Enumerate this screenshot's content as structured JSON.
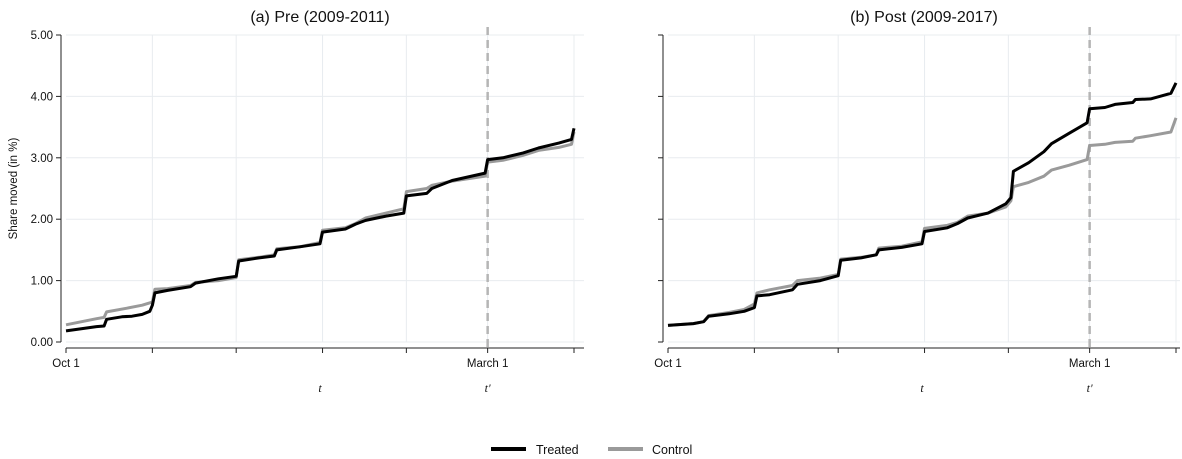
{
  "chart_data": [
    {
      "type": "line",
      "title": "(a) Pre (2009-2011)",
      "ylabel": "Share moved (in %)",
      "xlabel": "",
      "ylim": [
        0,
        5
      ],
      "yticks": [
        "0.00",
        "1.00",
        "2.00",
        "3.00",
        "4.00",
        "5.00"
      ],
      "x_tick_labels": [
        {
          "x": 0.0,
          "label": "Oct 1"
        },
        {
          "x": 0.83,
          "label": "March 1"
        }
      ],
      "x_italic_labels": [
        {
          "x": 0.5,
          "label": "t"
        },
        {
          "x": 0.83,
          "label": "t'"
        }
      ],
      "vline_x": 0.83,
      "grid": true,
      "series": [
        {
          "name": "Treated",
          "color": "#000000",
          "points": [
            [
              0.0,
              0.18
            ],
            [
              0.06,
              0.25
            ],
            [
              0.075,
              0.26
            ],
            [
              0.08,
              0.37
            ],
            [
              0.11,
              0.41
            ],
            [
              0.13,
              0.42
            ],
            [
              0.15,
              0.45
            ],
            [
              0.165,
              0.5
            ],
            [
              0.17,
              0.6
            ],
            [
              0.175,
              0.8
            ],
            [
              0.2,
              0.84
            ],
            [
              0.245,
              0.9
            ],
            [
              0.255,
              0.96
            ],
            [
              0.3,
              1.03
            ],
            [
              0.335,
              1.07
            ],
            [
              0.34,
              1.32
            ],
            [
              0.38,
              1.37
            ],
            [
              0.41,
              1.4
            ],
            [
              0.415,
              1.5
            ],
            [
              0.46,
              1.55
            ],
            [
              0.5,
              1.6
            ],
            [
              0.505,
              1.79
            ],
            [
              0.55,
              1.84
            ],
            [
              0.57,
              1.92
            ],
            [
              0.59,
              1.98
            ],
            [
              0.63,
              2.05
            ],
            [
              0.665,
              2.1
            ],
            [
              0.67,
              2.38
            ],
            [
              0.71,
              2.42
            ],
            [
              0.72,
              2.5
            ],
            [
              0.76,
              2.63
            ],
            [
              0.825,
              2.75
            ],
            [
              0.83,
              2.97
            ],
            [
              0.86,
              3.0
            ],
            [
              0.9,
              3.08
            ],
            [
              0.93,
              3.16
            ],
            [
              0.97,
              3.24
            ],
            [
              0.995,
              3.3
            ],
            [
              1.0,
              3.48
            ]
          ]
        },
        {
          "name": "Control",
          "color": "#9a9a9a",
          "points": [
            [
              0.0,
              0.28
            ],
            [
              0.06,
              0.38
            ],
            [
              0.075,
              0.4
            ],
            [
              0.08,
              0.49
            ],
            [
              0.12,
              0.55
            ],
            [
              0.15,
              0.6
            ],
            [
              0.17,
              0.65
            ],
            [
              0.175,
              0.86
            ],
            [
              0.2,
              0.87
            ],
            [
              0.245,
              0.92
            ],
            [
              0.255,
              0.97
            ],
            [
              0.3,
              1.0
            ],
            [
              0.335,
              1.05
            ],
            [
              0.34,
              1.34
            ],
            [
              0.38,
              1.38
            ],
            [
              0.41,
              1.42
            ],
            [
              0.415,
              1.52
            ],
            [
              0.46,
              1.55
            ],
            [
              0.5,
              1.62
            ],
            [
              0.505,
              1.82
            ],
            [
              0.55,
              1.86
            ],
            [
              0.57,
              1.93
            ],
            [
              0.59,
              2.02
            ],
            [
              0.63,
              2.1
            ],
            [
              0.665,
              2.17
            ],
            [
              0.67,
              2.45
            ],
            [
              0.71,
              2.5
            ],
            [
              0.72,
              2.55
            ],
            [
              0.76,
              2.62
            ],
            [
              0.825,
              2.7
            ],
            [
              0.83,
              2.93
            ],
            [
              0.86,
              2.96
            ],
            [
              0.9,
              3.04
            ],
            [
              0.93,
              3.12
            ],
            [
              0.97,
              3.17
            ],
            [
              0.995,
              3.22
            ],
            [
              1.0,
              3.42
            ]
          ]
        }
      ]
    },
    {
      "type": "line",
      "title": "(b) Post (2009-2017)",
      "ylabel": "",
      "xlabel": "",
      "ylim": [
        0,
        5
      ],
      "yticks": [
        "",
        "",
        "",
        "",
        "",
        ""
      ],
      "x_tick_labels": [
        {
          "x": 0.0,
          "label": "Oct 1"
        },
        {
          "x": 0.83,
          "label": "March 1"
        }
      ],
      "x_italic_labels": [
        {
          "x": 0.5,
          "label": "t"
        },
        {
          "x": 0.83,
          "label": "t'"
        }
      ],
      "vline_x": 0.83,
      "grid": true,
      "series": [
        {
          "name": "Treated",
          "color": "#000000",
          "points": [
            [
              0.0,
              0.27
            ],
            [
              0.05,
              0.3
            ],
            [
              0.07,
              0.33
            ],
            [
              0.08,
              0.42
            ],
            [
              0.12,
              0.46
            ],
            [
              0.15,
              0.5
            ],
            [
              0.17,
              0.56
            ],
            [
              0.175,
              0.75
            ],
            [
              0.2,
              0.77
            ],
            [
              0.245,
              0.85
            ],
            [
              0.255,
              0.94
            ],
            [
              0.3,
              1.0
            ],
            [
              0.335,
              1.08
            ],
            [
              0.34,
              1.33
            ],
            [
              0.38,
              1.37
            ],
            [
              0.41,
              1.42
            ],
            [
              0.415,
              1.5
            ],
            [
              0.46,
              1.54
            ],
            [
              0.5,
              1.6
            ],
            [
              0.505,
              1.8
            ],
            [
              0.55,
              1.86
            ],
            [
              0.57,
              1.93
            ],
            [
              0.59,
              2.02
            ],
            [
              0.63,
              2.1
            ],
            [
              0.665,
              2.25
            ],
            [
              0.675,
              2.35
            ],
            [
              0.68,
              2.78
            ],
            [
              0.71,
              2.92
            ],
            [
              0.74,
              3.1
            ],
            [
              0.755,
              3.23
            ],
            [
              0.79,
              3.4
            ],
            [
              0.825,
              3.57
            ],
            [
              0.83,
              3.8
            ],
            [
              0.86,
              3.82
            ],
            [
              0.88,
              3.87
            ],
            [
              0.915,
              3.9
            ],
            [
              0.92,
              3.95
            ],
            [
              0.95,
              3.96
            ],
            [
              0.99,
              4.05
            ],
            [
              1.0,
              4.22
            ]
          ]
        },
        {
          "name": "Control",
          "color": "#9a9a9a",
          "points": [
            [
              0.0,
              0.27
            ],
            [
              0.05,
              0.3
            ],
            [
              0.07,
              0.33
            ],
            [
              0.08,
              0.43
            ],
            [
              0.12,
              0.48
            ],
            [
              0.15,
              0.53
            ],
            [
              0.17,
              0.62
            ],
            [
              0.175,
              0.8
            ],
            [
              0.2,
              0.85
            ],
            [
              0.245,
              0.92
            ],
            [
              0.255,
              1.0
            ],
            [
              0.3,
              1.04
            ],
            [
              0.335,
              1.1
            ],
            [
              0.34,
              1.35
            ],
            [
              0.38,
              1.38
            ],
            [
              0.41,
              1.42
            ],
            [
              0.415,
              1.53
            ],
            [
              0.46,
              1.56
            ],
            [
              0.5,
              1.63
            ],
            [
              0.505,
              1.85
            ],
            [
              0.55,
              1.9
            ],
            [
              0.57,
              1.95
            ],
            [
              0.59,
              2.05
            ],
            [
              0.63,
              2.1
            ],
            [
              0.665,
              2.2
            ],
            [
              0.675,
              2.3
            ],
            [
              0.68,
              2.53
            ],
            [
              0.71,
              2.6
            ],
            [
              0.74,
              2.7
            ],
            [
              0.755,
              2.8
            ],
            [
              0.79,
              2.88
            ],
            [
              0.825,
              2.97
            ],
            [
              0.83,
              3.2
            ],
            [
              0.86,
              3.22
            ],
            [
              0.88,
              3.25
            ],
            [
              0.915,
              3.27
            ],
            [
              0.92,
              3.32
            ],
            [
              0.95,
              3.36
            ],
            [
              0.99,
              3.42
            ],
            [
              1.0,
              3.65
            ]
          ]
        }
      ]
    }
  ],
  "legend": {
    "items": [
      {
        "label": "Treated",
        "color": "#000000"
      },
      {
        "label": "Control",
        "color": "#9a9a9a"
      }
    ]
  }
}
